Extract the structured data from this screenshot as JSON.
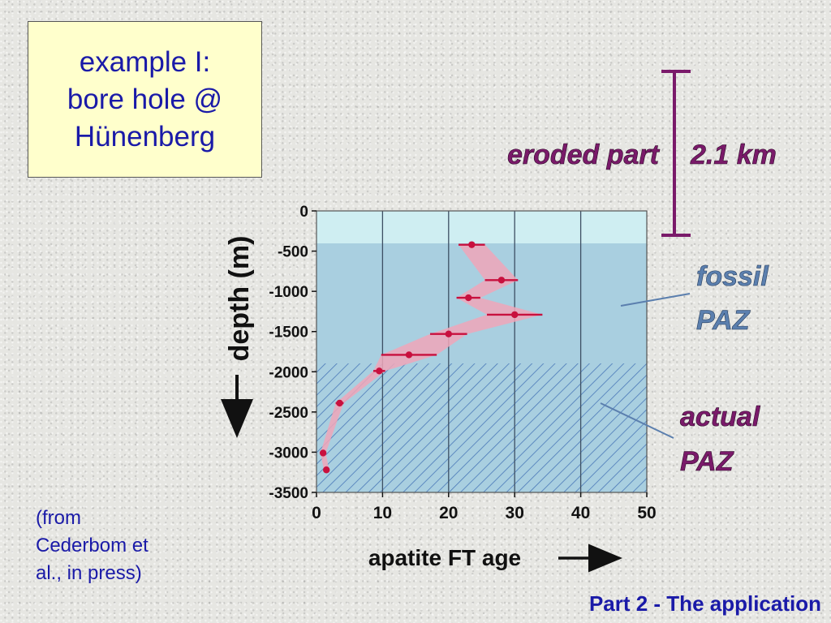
{
  "title_box": {
    "lines": [
      "example I:",
      "bore hole @",
      "Hünenberg"
    ]
  },
  "citation": {
    "lines": [
      "(from",
      "Cederbom et",
      "al., in press)"
    ]
  },
  "footer": "Part 2 - The application",
  "annotations": {
    "eroded_label": "eroded part",
    "eroded_value": "2.1 km",
    "fossil_line1": "fossil",
    "fossil_line2": "PAZ",
    "actual_line1": "actual",
    "actual_line2": "PAZ"
  },
  "colors": {
    "text_blue": "#1a1aa8",
    "box_fill": "#ffffcc",
    "magenta": "#7a1a6a",
    "steel_blue": "#5b7fae",
    "plot_band_top": "#cfeef2",
    "plot_band_main": "#a9cfe0",
    "hatch": "#4a78b8",
    "error_band": "#f0a6b8",
    "data_point": "#c8103e"
  },
  "chart_data": {
    "type": "scatter",
    "xlabel": "apatite FT age",
    "ylabel": "depth (m)",
    "xlim": [
      0,
      50
    ],
    "ylim": [
      -3500,
      0
    ],
    "x_ticks": [
      "0",
      "10",
      "20",
      "30",
      "40",
      "50"
    ],
    "y_ticks": [
      "0",
      "-500",
      "-1000",
      "-1500",
      "-2000",
      "-2500",
      "-3000",
      "-3500"
    ],
    "grid": "vertical lines",
    "actual_paz_top_depth": -1950,
    "fossil_paz_band_top_depth": -400,
    "points": [
      {
        "age": 23.5,
        "depth": -420,
        "err": 2.0
      },
      {
        "age": 28.0,
        "depth": -860,
        "err": 2.5
      },
      {
        "age": 23.0,
        "depth": -1080,
        "err": 1.8
      },
      {
        "age": 30.0,
        "depth": -1290,
        "err": 4.2
      },
      {
        "age": 20.0,
        "depth": -1530,
        "err": 2.8
      },
      {
        "age": 14.0,
        "depth": -1790,
        "err": 4.2
      },
      {
        "age": 9.5,
        "depth": -1990,
        "err": 0.9
      },
      {
        "age": 3.5,
        "depth": -2390,
        "err": 0.6
      },
      {
        "age": 1.0,
        "depth": -3010,
        "err": 0.4
      },
      {
        "age": 1.5,
        "depth": -3220,
        "err": 0.4
      }
    ]
  }
}
